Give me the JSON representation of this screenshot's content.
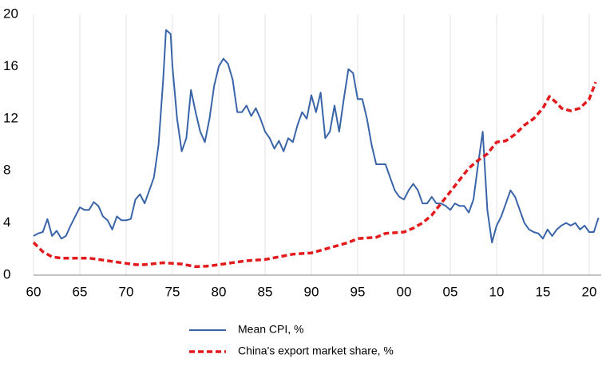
{
  "chart_data": {
    "type": "line",
    "xlim": [
      1960,
      2021.3
    ],
    "ylim": [
      0,
      20
    ],
    "xticks": [
      {
        "value": 1960,
        "label": "60"
      },
      {
        "value": 1965,
        "label": "65"
      },
      {
        "value": 1970,
        "label": "70"
      },
      {
        "value": 1975,
        "label": "75"
      },
      {
        "value": 1980,
        "label": "80"
      },
      {
        "value": 1985,
        "label": "85"
      },
      {
        "value": 1990,
        "label": "90"
      },
      {
        "value": 1995,
        "label": "95"
      },
      {
        "value": 2000,
        "label": "00"
      },
      {
        "value": 2005,
        "label": "05"
      },
      {
        "value": 2010,
        "label": "10"
      },
      {
        "value": 2015,
        "label": "15"
      },
      {
        "value": 2020,
        "label": "20"
      }
    ],
    "yticks": [
      0,
      4,
      8,
      12,
      16,
      20
    ],
    "grid": true,
    "series": [
      {
        "name": "Mean CPI, %",
        "color": "#3a64a8",
        "dashed": false,
        "x": [
          1960,
          1960.5,
          1961,
          1961.5,
          1962,
          1962.5,
          1963,
          1963.5,
          1964,
          1964.5,
          1965,
          1965.5,
          1966,
          1966.5,
          1967,
          1967.5,
          1968,
          1968.5,
          1969,
          1969.5,
          1970,
          1970.5,
          1971,
          1971.5,
          1972,
          1972.5,
          1973,
          1973.5,
          1974,
          1974.3,
          1974.8,
          1975,
          1975.5,
          1976,
          1976.5,
          1977,
          1977.5,
          1978,
          1978.5,
          1979,
          1979.5,
          1980,
          1980.5,
          1981,
          1981.5,
          1982,
          1982.5,
          1983,
          1983.5,
          1984,
          1984.5,
          1985,
          1985.5,
          1986,
          1986.5,
          1987,
          1987.5,
          1988,
          1988.5,
          1989,
          1989.5,
          1990,
          1990.5,
          1991,
          1991.5,
          1992,
          1992.5,
          1993,
          1993.5,
          1994,
          1994.5,
          1995,
          1995.5,
          1996,
          1996.5,
          1997,
          1997.5,
          1998,
          1998.5,
          1999,
          1999.5,
          2000,
          2000.5,
          2001,
          2001.5,
          2002,
          2002.5,
          2003,
          2003.5,
          2004,
          2004.5,
          2005,
          2005.5,
          2006,
          2006.5,
          2007,
          2007.5,
          2008,
          2008.5,
          2009,
          2009.5,
          2010,
          2010.5,
          2011,
          2011.5,
          2012,
          2012.5,
          2013,
          2013.5,
          2014,
          2014.5,
          2015,
          2015.5,
          2016,
          2016.5,
          2017,
          2017.5,
          2018,
          2018.5,
          2019,
          2019.5,
          2020,
          2020.5,
          2021
        ],
        "values": [
          3.0,
          3.2,
          3.3,
          4.3,
          3.0,
          3.4,
          2.8,
          3.0,
          3.8,
          4.5,
          5.2,
          5.0,
          5.0,
          5.6,
          5.3,
          4.5,
          4.2,
          3.5,
          4.5,
          4.2,
          4.2,
          4.3,
          5.8,
          6.2,
          5.5,
          6.5,
          7.5,
          10.0,
          15.0,
          18.8,
          18.5,
          16.0,
          12.0,
          9.5,
          10.5,
          14.2,
          12.5,
          11.0,
          10.2,
          12.0,
          14.5,
          16.0,
          16.6,
          16.2,
          15.0,
          12.5,
          12.5,
          13.0,
          12.2,
          12.8,
          12.0,
          11.0,
          10.5,
          9.7,
          10.3,
          9.5,
          10.5,
          10.2,
          11.5,
          12.5,
          12.0,
          13.8,
          12.5,
          14.0,
          10.5,
          11.0,
          13.0,
          11.0,
          13.5,
          15.8,
          15.5,
          13.5,
          13.5,
          12.0,
          10.0,
          8.5,
          8.5,
          8.5,
          7.5,
          6.5,
          6.0,
          5.8,
          6.5,
          7.0,
          6.5,
          5.5,
          5.5,
          6.0,
          5.5,
          5.5,
          5.3,
          5.0,
          5.5,
          5.3,
          5.3,
          4.8,
          5.8,
          8.5,
          11.0,
          5.0,
          2.5,
          3.8,
          4.5,
          5.5,
          6.5,
          6.0,
          5.0,
          4.0,
          3.5,
          3.3,
          3.2,
          2.8,
          3.5,
          3.0,
          3.5,
          3.8,
          4.0,
          3.8,
          4.0,
          3.5,
          3.8,
          3.3,
          3.3,
          4.4
        ]
      },
      {
        "name": "China's export market share, %",
        "color": "#e31a1c",
        "dashed": true,
        "x": [
          1960,
          1961,
          1962,
          1963,
          1965,
          1966,
          1968,
          1970,
          1971,
          1972,
          1974,
          1976,
          1977.5,
          1979,
          1980,
          1982,
          1983,
          1985,
          1988,
          1990,
          1992,
          1994,
          1995,
          1997,
          1998,
          2000,
          2001,
          2002,
          2003,
          2004,
          2005,
          2006,
          2007,
          2008,
          2009,
          2010,
          2011,
          2012,
          2013,
          2014,
          2015,
          2015.7,
          2016.5,
          2017,
          2018,
          2019,
          2020,
          2020.7
        ],
        "values": [
          2.5,
          1.8,
          1.4,
          1.3,
          1.3,
          1.3,
          1.1,
          0.9,
          0.8,
          0.8,
          0.95,
          0.85,
          0.65,
          0.7,
          0.8,
          1.0,
          1.1,
          1.2,
          1.6,
          1.7,
          2.1,
          2.5,
          2.8,
          2.9,
          3.2,
          3.3,
          3.6,
          4.0,
          4.6,
          5.5,
          6.4,
          7.3,
          8.2,
          8.8,
          9.3,
          10.2,
          10.3,
          10.8,
          11.5,
          12.0,
          12.8,
          13.7,
          13.2,
          12.8,
          12.6,
          12.8,
          13.5,
          14.8
        ]
      }
    ]
  }
}
